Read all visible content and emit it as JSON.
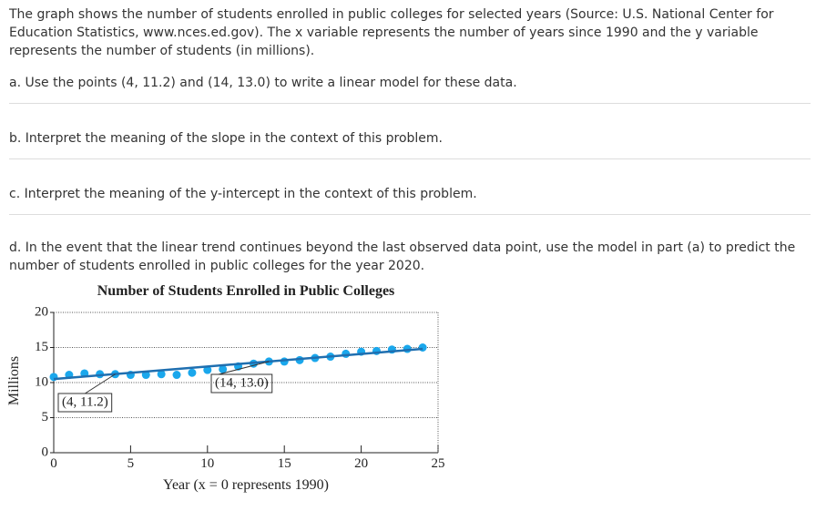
{
  "intro": "The graph shows the number of students enrolled in public colleges for selected years (Source: U.S. National Center for Education Statistics, www.nces.ed.gov). The x variable represents the number of years since 1990 and the y variable represents the number of students (in millions).",
  "questions": [
    "a. Use the points (4, 11.2) and (14, 13.0) to write a linear model for these data.",
    "b. Interpret the meaning of the slope in the context of this problem.",
    "c. Interpret the meaning of the y-intercept in the context of this problem.",
    "d. In the event that the linear trend continues beyond the last observed data point, use the model in part (a) to predict the number of students enrolled in public colleges for the year 2020."
  ],
  "chart_data": {
    "type": "scatter",
    "title": "Number of Students Enrolled in Public Colleges",
    "x_label": "Year (x = 0 represents 1990)",
    "y_label": "Millions",
    "x": [
      0,
      1,
      2,
      3,
      4,
      5,
      6,
      7,
      8,
      9,
      10,
      11,
      12,
      13,
      14,
      15,
      16,
      17,
      18,
      19,
      20,
      21,
      22,
      23,
      24
    ],
    "series": [
      {
        "color": "#1aa7ec",
        "values": [
          10.8,
          11.1,
          11.3,
          11.2,
          11.2,
          11.1,
          11.1,
          11.2,
          11.1,
          11.4,
          11.8,
          11.9,
          12.3,
          12.7,
          13.0,
          13.0,
          13.2,
          13.5,
          13.7,
          14.1,
          14.4,
          14.5,
          14.7,
          14.8,
          15.0
        ]
      }
    ],
    "line": {
      "x": [
        0,
        24
      ],
      "values": [
        10.5,
        14.8
      ],
      "color": "#1f6fb0"
    },
    "annotations": [
      {
        "label": "(4, 11.2)",
        "x": 4,
        "y": 11.2
      },
      {
        "label": "(14, 13.0)",
        "x": 14,
        "y": 13.0
      }
    ],
    "xlim": [
      0,
      25
    ],
    "xticks": [
      0,
      5,
      10,
      15,
      20,
      25
    ],
    "ylim": [
      0,
      20
    ],
    "yticks": [
      0,
      5,
      10,
      15,
      20
    ],
    "grid": true
  }
}
